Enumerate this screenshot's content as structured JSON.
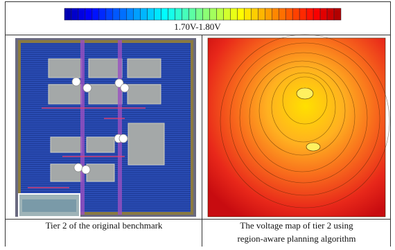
{
  "colorbar": {
    "label": "1.70V-1.80V"
  },
  "panels": [
    {
      "caption": [
        "Tier 2 of the original benchmark"
      ]
    },
    {
      "caption": [
        "The voltage map of tier 2 using",
        "region-aware planning algorithm"
      ]
    }
  ]
}
